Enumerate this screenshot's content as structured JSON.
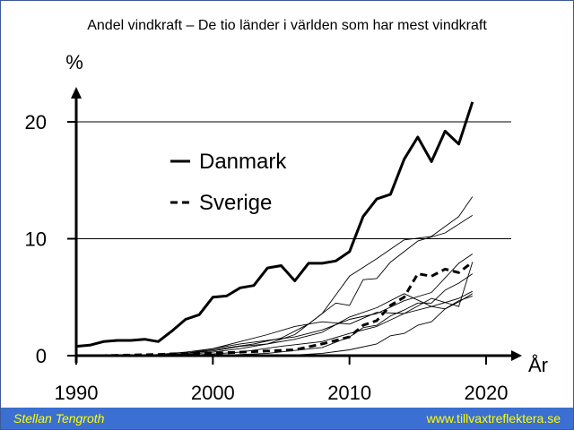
{
  "title": "Andel vindkraft – De tio länder i världen som har mest vindkraft",
  "footer": {
    "author": "Stellan Tengroth",
    "website": "www.tillvaxtreflektera.se"
  },
  "chart_data": {
    "type": "line",
    "title": "Andel vindkraft – De tio länder i världen som har mest vindkraft",
    "xlabel": "År",
    "ylabel": "%",
    "xlim": [
      1990,
      2021
    ],
    "ylim": [
      0,
      22
    ],
    "x_ticks": [
      1990,
      2000,
      2010,
      2020
    ],
    "y_ticks": [
      0,
      10,
      20
    ],
    "gridlines_y": [
      10,
      20
    ],
    "legend_position": "upper-left",
    "series": [
      {
        "name": "Danmark",
        "style": "solid-bold",
        "legend": true,
        "x": [
          1990,
          1991,
          1992,
          1993,
          1994,
          1995,
          1996,
          1997,
          1998,
          1999,
          2000,
          2001,
          2002,
          2003,
          2004,
          2005,
          2006,
          2007,
          2008,
          2009,
          2010,
          2011,
          2012,
          2013,
          2014,
          2015,
          2016,
          2017,
          2018,
          2019
        ],
        "values": [
          0.8,
          0.9,
          1.2,
          1.3,
          1.3,
          1.4,
          1.2,
          2.1,
          3.1,
          3.5,
          5.0,
          5.1,
          5.8,
          6.0,
          7.5,
          7.7,
          6.4,
          7.9,
          7.9,
          8.1,
          8.9,
          11.9,
          13.4,
          13.8,
          16.8,
          18.7,
          16.6,
          19.2,
          18.1,
          21.7
        ]
      },
      {
        "name": "Sverige",
        "style": "dashed-bold",
        "legend": true,
        "x": [
          1990,
          1992,
          1994,
          1996,
          1998,
          2000,
          2002,
          2004,
          2006,
          2008,
          2010,
          2011,
          2012,
          2013,
          2014,
          2015,
          2016,
          2017,
          2018,
          2019
        ],
        "values": [
          0.0,
          0.0,
          0.05,
          0.1,
          0.2,
          0.2,
          0.3,
          0.4,
          0.5,
          1.0,
          1.6,
          2.6,
          3.0,
          4.3,
          5.0,
          7.0,
          6.8,
          7.4,
          7.1,
          8.0
        ]
      },
      {
        "style": "thin",
        "x": [
          1996,
          1998,
          2000,
          2002,
          2004,
          2006,
          2008,
          2010,
          2012,
          2014,
          2016,
          2018,
          2019
        ],
        "values": [
          0.0,
          0.1,
          0.3,
          0.6,
          1.0,
          1.8,
          3.6,
          6.8,
          8.3,
          9.9,
          10.2,
          11.9,
          13.6
        ]
      },
      {
        "style": "thin",
        "x": [
          1997,
          2000,
          2003,
          2005,
          2007,
          2009,
          2010,
          2011,
          2012,
          2013,
          2015,
          2017,
          2019
        ],
        "values": [
          0.0,
          0.5,
          1.0,
          1.5,
          2.7,
          4.5,
          4.3,
          6.5,
          6.6,
          8.0,
          9.8,
          10.5,
          12.0
        ]
      },
      {
        "style": "thin",
        "x": [
          1995,
          1998,
          2000,
          2002,
          2004,
          2006,
          2008,
          2010,
          2012,
          2014,
          2016,
          2018,
          2019
        ],
        "values": [
          0.0,
          0.3,
          0.6,
          1.2,
          1.8,
          2.5,
          2.9,
          2.7,
          3.7,
          3.6,
          4.9,
          4.2,
          8.0
        ]
      },
      {
        "style": "thin",
        "x": [
          1996,
          1998,
          2000,
          2002,
          2004,
          2006,
          2008,
          2010,
          2012,
          2014,
          2016,
          2018,
          2019
        ],
        "values": [
          0.0,
          0.2,
          0.6,
          1.0,
          1.3,
          1.6,
          2.2,
          3.1,
          3.6,
          4.7,
          5.4,
          7.9,
          8.7
        ]
      },
      {
        "style": "thin",
        "x": [
          1995,
          1998,
          2000,
          2002,
          2004,
          2006,
          2008,
          2010,
          2012,
          2014,
          2016,
          2018,
          2019
        ],
        "values": [
          0.0,
          0.2,
          0.4,
          0.8,
          1.0,
          1.4,
          2.0,
          3.3,
          4.1,
          5.3,
          4.2,
          4.9,
          5.5
        ]
      },
      {
        "style": "thin",
        "x": [
          2000,
          2004,
          2008,
          2010,
          2011,
          2012,
          2013,
          2014,
          2015,
          2016,
          2017,
          2018,
          2019
        ],
        "values": [
          0.0,
          0.2,
          0.7,
          1.6,
          2.4,
          2.6,
          3.4,
          3.9,
          4.5,
          4.5,
          5.6,
          6.2,
          7.0
        ]
      },
      {
        "style": "thin",
        "x": [
          1998,
          2002,
          2005,
          2008,
          2010,
          2012,
          2014,
          2016,
          2017,
          2018,
          2019
        ],
        "values": [
          0.0,
          0.3,
          0.8,
          1.2,
          1.9,
          2.5,
          3.6,
          4.2,
          4.0,
          4.7,
          5.1
        ]
      },
      {
        "style": "thin",
        "x": [
          2004,
          2006,
          2008,
          2010,
          2012,
          2013,
          2014,
          2015,
          2016,
          2017,
          2018,
          2019
        ],
        "values": [
          0.0,
          0.05,
          0.2,
          0.5,
          1.0,
          1.7,
          1.9,
          2.6,
          2.9,
          4.0,
          4.6,
          5.3
        ]
      }
    ]
  }
}
